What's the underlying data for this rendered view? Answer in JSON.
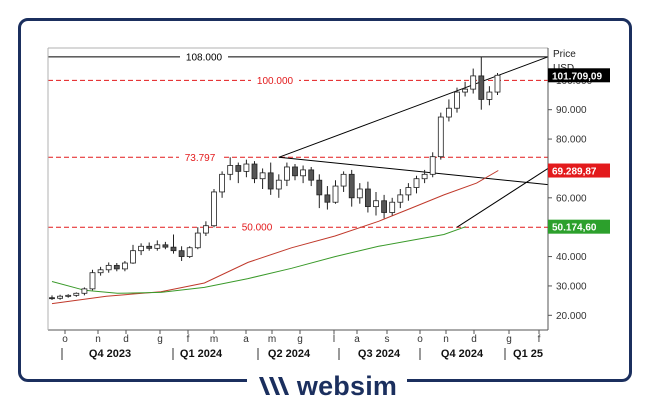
{
  "brand": {
    "name": "websim",
    "logo_icon": "websim-logo-icon",
    "color": "#1b2f5e"
  },
  "chart_data": {
    "type": "candlestick",
    "axis_title": "Price",
    "axis_unit": "USD",
    "ylim": [
      15000,
      111000
    ],
    "y_ticks": [
      {
        "value": 20000,
        "label": "20.000"
      },
      {
        "value": 30000,
        "label": "30.000"
      },
      {
        "value": 40000,
        "label": "40.000"
      },
      {
        "value": 50000,
        "label": "50.000"
      },
      {
        "value": 60000,
        "label": "60.000"
      },
      {
        "value": 70000,
        "label": "70.000"
      },
      {
        "value": 80000,
        "label": "80.000"
      },
      {
        "value": 90000,
        "label": "90.000"
      },
      {
        "value": 100000,
        "label": "100.000"
      }
    ],
    "month_labels": [
      "o",
      "n",
      "d",
      "g",
      "f",
      "m",
      "a",
      "m",
      "g",
      "l",
      "a",
      "s",
      "o",
      "n",
      "d",
      "g",
      "f"
    ],
    "quarter_labels": [
      "Q4 2023",
      "Q1 2024",
      "Q2 2024",
      "Q3 2024",
      "Q4 2024",
      "Q1 25"
    ],
    "levels": [
      {
        "value": 108000,
        "label": "108.000",
        "color": "#000000",
        "style": "solid"
      },
      {
        "value": 100000,
        "label": "100.000",
        "color": "#e31a1c",
        "style": "dashed"
      },
      {
        "value": 73797,
        "label": "73.797",
        "color": "#e31a1c",
        "style": "dashed"
      },
      {
        "value": 50000,
        "label": "50.000",
        "color": "#e31a1c",
        "style": "dashed"
      }
    ],
    "price_tags": [
      {
        "value": 101709.09,
        "label": "101.709,09",
        "bg": "#000000",
        "fg": "#ffffff"
      },
      {
        "value": 69289.87,
        "label": "69.289,87",
        "bg": "#e31a1c",
        "fg": "#ffffff"
      },
      {
        "value": 50174.6,
        "label": "50.174,60",
        "bg": "#2ca02c",
        "fg": "#ffffff"
      }
    ],
    "moving_averages": [
      {
        "color": "#c0392b",
        "points": [
          [
            0,
            24000
          ],
          [
            10,
            26500
          ],
          [
            20,
            28000
          ],
          [
            28,
            31000
          ],
          [
            36,
            38000
          ],
          [
            44,
            43000
          ],
          [
            52,
            47000
          ],
          [
            60,
            52000
          ],
          [
            66,
            56500
          ],
          [
            72,
            61000
          ],
          [
            78,
            65000
          ],
          [
            82,
            69300
          ]
        ]
      },
      {
        "color": "#3a9a2a",
        "points": [
          [
            0,
            31500
          ],
          [
            6,
            28500
          ],
          [
            12,
            27500
          ],
          [
            20,
            27800
          ],
          [
            28,
            29500
          ],
          [
            36,
            32500
          ],
          [
            44,
            36000
          ],
          [
            52,
            40000
          ],
          [
            60,
            43500
          ],
          [
            66,
            45500
          ],
          [
            72,
            47500
          ],
          [
            76,
            50174
          ]
        ]
      }
    ],
    "trendlines": [
      {
        "color": "#000000",
        "from": [
          28,
          73797
        ],
        "to": [
          82,
          108000
        ]
      },
      {
        "color": "#000000",
        "from": [
          28,
          73797
        ],
        "to": [
          82,
          64500
        ]
      },
      {
        "color": "#000000",
        "from": [
          50,
          50000
        ],
        "to": [
          82,
          70000
        ]
      }
    ],
    "candles": [
      [
        0,
        26000,
        26800,
        25200,
        25800
      ],
      [
        1,
        25800,
        27000,
        25300,
        26500
      ],
      [
        2,
        26500,
        27200,
        26000,
        26800
      ],
      [
        3,
        26800,
        27800,
        26300,
        27500
      ],
      [
        4,
        27500,
        29500,
        26800,
        29000
      ],
      [
        5,
        29000,
        35500,
        28500,
        34500
      ],
      [
        6,
        34500,
        36500,
        33500,
        35500
      ],
      [
        7,
        35500,
        38000,
        34500,
        37000
      ],
      [
        8,
        37000,
        37800,
        35000,
        35800
      ],
      [
        9,
        35800,
        38500,
        35000,
        37800
      ],
      [
        10,
        37800,
        44000,
        37500,
        42000
      ],
      [
        11,
        42000,
        44500,
        40500,
        43500
      ],
      [
        12,
        43500,
        44800,
        42000,
        42800
      ],
      [
        13,
        42800,
        45500,
        42000,
        44000
      ],
      [
        14,
        44000,
        45000,
        42500,
        43200
      ],
      [
        15,
        43200,
        47500,
        41000,
        42000
      ],
      [
        16,
        42000,
        43500,
        38500,
        40000
      ],
      [
        17,
        40000,
        43500,
        39500,
        43000
      ],
      [
        18,
        43000,
        50000,
        42500,
        48000
      ],
      [
        19,
        48000,
        52000,
        47000,
        50500
      ],
      [
        20,
        50500,
        63000,
        50000,
        62000
      ],
      [
        21,
        62000,
        69000,
        60000,
        68000
      ],
      [
        22,
        68000,
        73797,
        66000,
        71000
      ],
      [
        23,
        71000,
        72000,
        65000,
        69000
      ],
      [
        24,
        69000,
        73000,
        67000,
        71500
      ],
      [
        25,
        71500,
        72500,
        65000,
        66500
      ],
      [
        26,
        66500,
        70000,
        63000,
        68500
      ],
      [
        27,
        68500,
        72000,
        61000,
        63000
      ],
      [
        28,
        63000,
        68000,
        60000,
        66000
      ],
      [
        29,
        66000,
        72000,
        64000,
        70500
      ],
      [
        30,
        70500,
        71500,
        66000,
        67500
      ],
      [
        31,
        67500,
        71000,
        65000,
        69500
      ],
      [
        32,
        69500,
        70500,
        64000,
        66000
      ],
      [
        33,
        66000,
        68000,
        56500,
        61000
      ],
      [
        34,
        61000,
        64000,
        56000,
        58500
      ],
      [
        35,
        58500,
        66000,
        58000,
        64000
      ],
      [
        36,
        64000,
        69000,
        62000,
        68000
      ],
      [
        37,
        68000,
        69500,
        57000,
        60000
      ],
      [
        38,
        60000,
        65000,
        58000,
        63000
      ],
      [
        39,
        63000,
        65500,
        55000,
        57000
      ],
      [
        40,
        57000,
        62000,
        54000,
        59000
      ],
      [
        41,
        59000,
        61000,
        53000,
        55000
      ],
      [
        42,
        55000,
        60000,
        54000,
        58500
      ],
      [
        43,
        58500,
        63000,
        56500,
        61000
      ],
      [
        44,
        61000,
        65000,
        59000,
        63500
      ],
      [
        45,
        63500,
        67500,
        61500,
        66500
      ],
      [
        46,
        66500,
        69500,
        65000,
        68000
      ],
      [
        47,
        68000,
        75500,
        67000,
        74000
      ],
      [
        48,
        74000,
        89000,
        73000,
        87500
      ],
      [
        49,
        87500,
        93500,
        86000,
        90500
      ],
      [
        50,
        90500,
        97500,
        89000,
        96000
      ],
      [
        51,
        96000,
        99500,
        94500,
        97000
      ],
      [
        52,
        97000,
        104000,
        95500,
        101500
      ],
      [
        53,
        101500,
        108000,
        90000,
        93500
      ],
      [
        54,
        93500,
        98000,
        91500,
        96000
      ],
      [
        55,
        96000,
        102500,
        95000,
        101709
      ]
    ]
  }
}
